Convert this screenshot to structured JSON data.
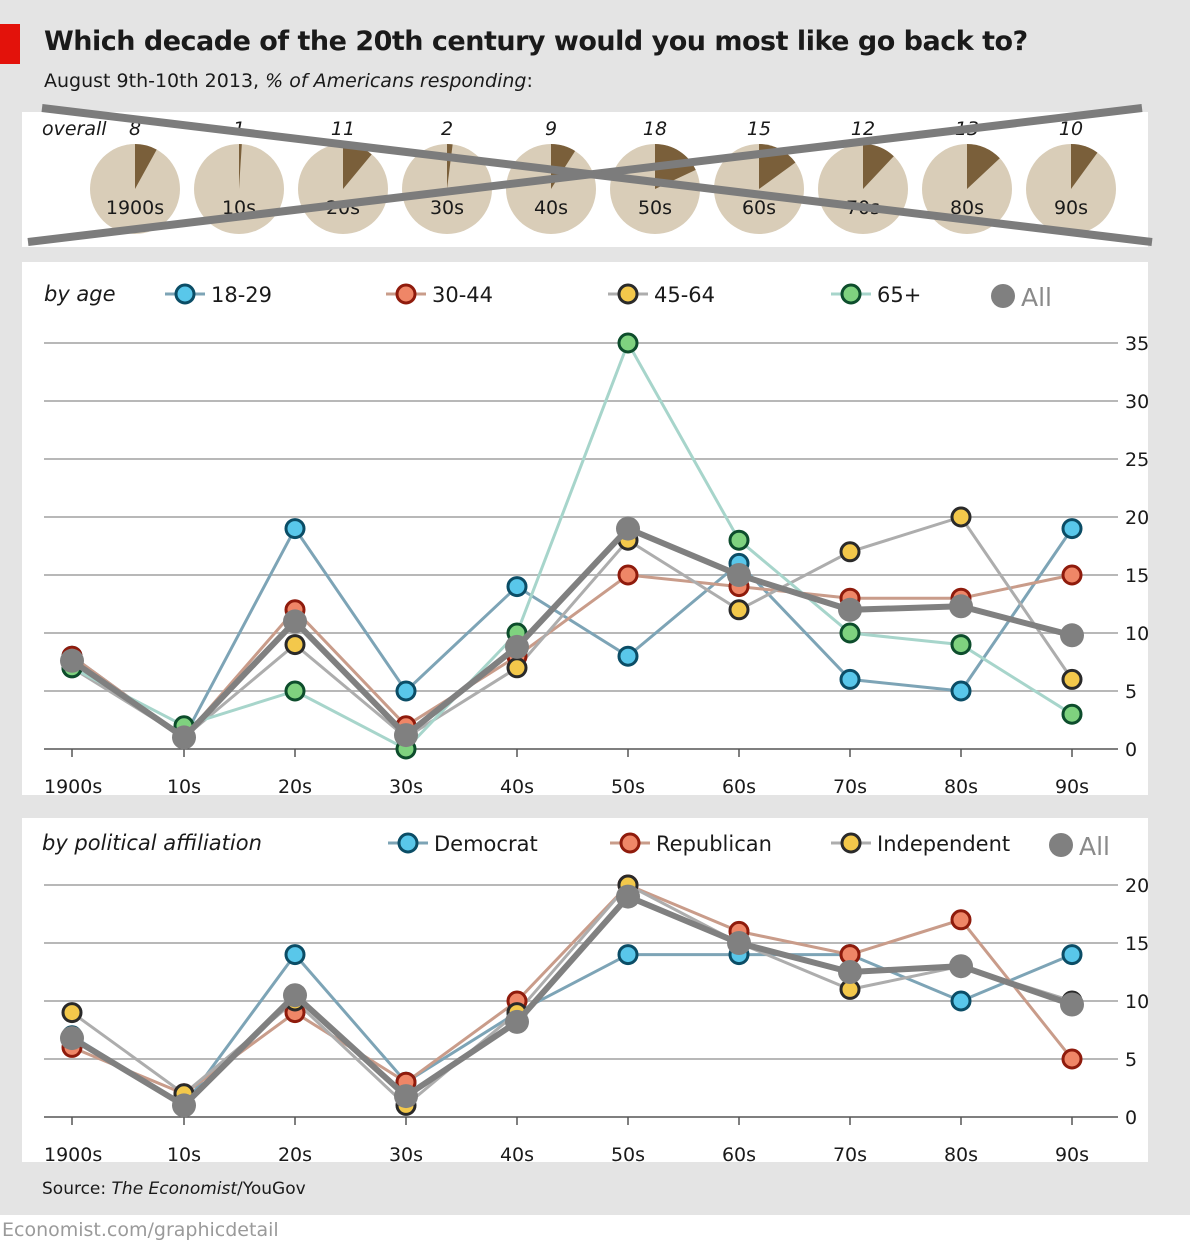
{
  "header": {
    "title": "Which decade of the 20th century would you most like go back to?",
    "subtitle_date": "August 9th-10th 2013,",
    "subtitle_italic": "% of Americans responding",
    "subtitle_end": ":"
  },
  "source": {
    "prefix": "Source: ",
    "italic": "The Economist",
    "suffix": "/YouGov"
  },
  "footer": "Economist.com/graphicdetail",
  "colors": {
    "accent_red": "#e3120b",
    "pie_bg": "#d9cdb8",
    "pie_slice": "#7a5f3a",
    "gridline": "#b8b8b8",
    "all_line": "#808080"
  },
  "chart_data": [
    {
      "type": "pie",
      "label": "overall",
      "categories": [
        "1900s",
        "10s",
        "20s",
        "30s",
        "40s",
        "50s",
        "60s",
        "70s",
        "80s",
        "90s"
      ],
      "values": [
        8,
        1,
        11,
        2,
        9,
        18,
        15,
        12,
        13,
        10
      ],
      "crossed_out": true
    },
    {
      "type": "line",
      "label": "by age",
      "categories": [
        "1900s",
        "10s",
        "20s",
        "30s",
        "40s",
        "50s",
        "60s",
        "70s",
        "80s",
        "90s"
      ],
      "ylim": [
        0,
        35
      ],
      "yticks": [
        0,
        5,
        10,
        15,
        20,
        25,
        30,
        35
      ],
      "grid": true,
      "legend_position": "top",
      "series": [
        {
          "name": "18-29",
          "line_color": "#7da4b6",
          "marker_fill": "#59c7ea",
          "marker_edge": "#0b4d66",
          "values": [
            8,
            1,
            19,
            5,
            14,
            8,
            16,
            6,
            5,
            19
          ]
        },
        {
          "name": "30-44",
          "line_color": "#c99c8a",
          "marker_fill": "#ef8667",
          "marker_edge": "#8f1b0c",
          "values": [
            8,
            1,
            12,
            2,
            8,
            15,
            14,
            13,
            13,
            15
          ]
        },
        {
          "name": "45-64",
          "line_color": "#adadad",
          "marker_fill": "#f3c84b",
          "marker_edge": "#2a2a2a",
          "values": [
            7,
            1,
            9,
            1,
            7,
            18,
            12,
            17,
            20,
            6
          ]
        },
        {
          "name": "65+",
          "line_color": "#a7d5cb",
          "marker_fill": "#7fd27f",
          "marker_edge": "#0d4d2c",
          "values": [
            7,
            2,
            5,
            0,
            10,
            35,
            18,
            10,
            9,
            3
          ]
        },
        {
          "name": "All",
          "line_color": "#808080",
          "marker_fill": "#808080",
          "marker_edge": "#808080",
          "values": [
            7.6,
            1,
            11,
            1.2,
            8.8,
            19,
            15,
            12,
            12.3,
            9.8
          ]
        }
      ]
    },
    {
      "type": "line",
      "label": "by political affiliation",
      "categories": [
        "1900s",
        "10s",
        "20s",
        "30s",
        "40s",
        "50s",
        "60s",
        "70s",
        "80s",
        "90s"
      ],
      "ylim": [
        0,
        20
      ],
      "yticks": [
        0,
        5,
        10,
        15,
        20
      ],
      "grid": true,
      "legend_position": "top",
      "series": [
        {
          "name": "Democrat",
          "line_color": "#7da4b6",
          "marker_fill": "#59c7ea",
          "marker_edge": "#0b4d66",
          "values": [
            7,
            1,
            14,
            3,
            9,
            14,
            14,
            14,
            10,
            14
          ]
        },
        {
          "name": "Republican",
          "line_color": "#c99c8a",
          "marker_fill": "#ef8667",
          "marker_edge": "#8f1b0c",
          "values": [
            6,
            2,
            9,
            3,
            10,
            20,
            16,
            14,
            17,
            5
          ]
        },
        {
          "name": "Independent",
          "line_color": "#adadad",
          "marker_fill": "#f3c84b",
          "marker_edge": "#2a2a2a",
          "values": [
            9,
            2,
            10,
            1,
            9,
            20,
            15,
            11,
            13,
            10
          ]
        },
        {
          "name": "All",
          "line_color": "#808080",
          "marker_fill": "#808080",
          "marker_edge": "#808080",
          "values": [
            6.8,
            1,
            10.5,
            1.8,
            8.2,
            19,
            15,
            12.5,
            13,
            9.7
          ]
        }
      ]
    }
  ]
}
